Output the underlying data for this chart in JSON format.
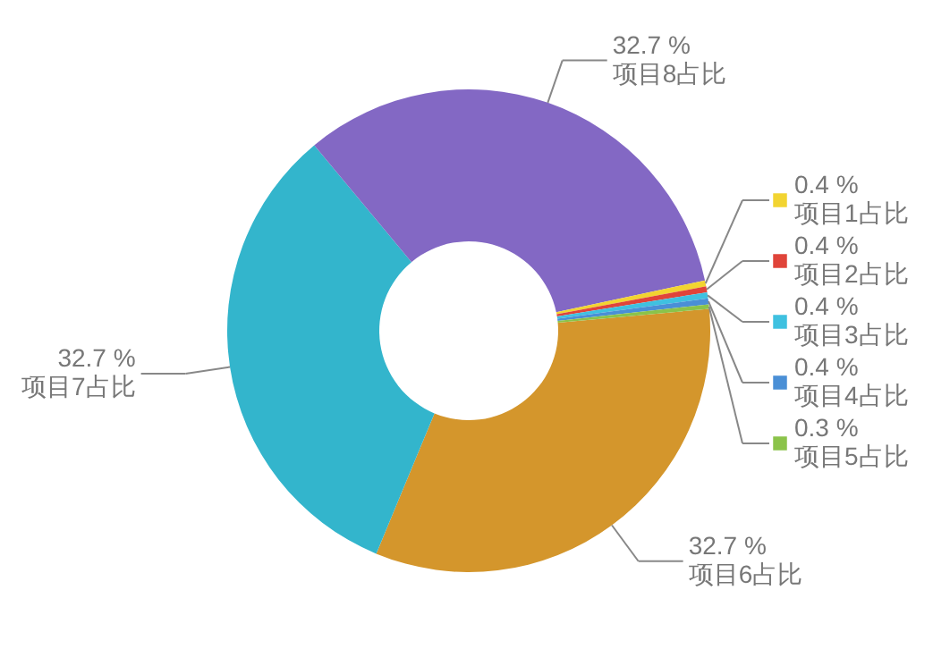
{
  "chart_data": {
    "type": "donut",
    "categories": [
      "项目6占比",
      "项目7占比",
      "项目8占比",
      "项目1占比",
      "项目2占比",
      "项目3占比",
      "项目4占比",
      "项目5占比"
    ],
    "values": [
      32.7,
      32.7,
      32.7,
      0.4,
      0.4,
      0.4,
      0.4,
      0.3
    ],
    "value_labels": [
      "32.7 %",
      "32.7 %",
      "32.7 %",
      "0.4 %",
      "0.4 %",
      "0.4 %",
      "0.4 %",
      "0.3 %"
    ],
    "colors": [
      "#d4962c",
      "#33b5cc",
      "#8368c4",
      "#f2d431",
      "#e0443a",
      "#3fc1e0",
      "#4a8fd6",
      "#8bc34a"
    ],
    "legend": "right"
  }
}
